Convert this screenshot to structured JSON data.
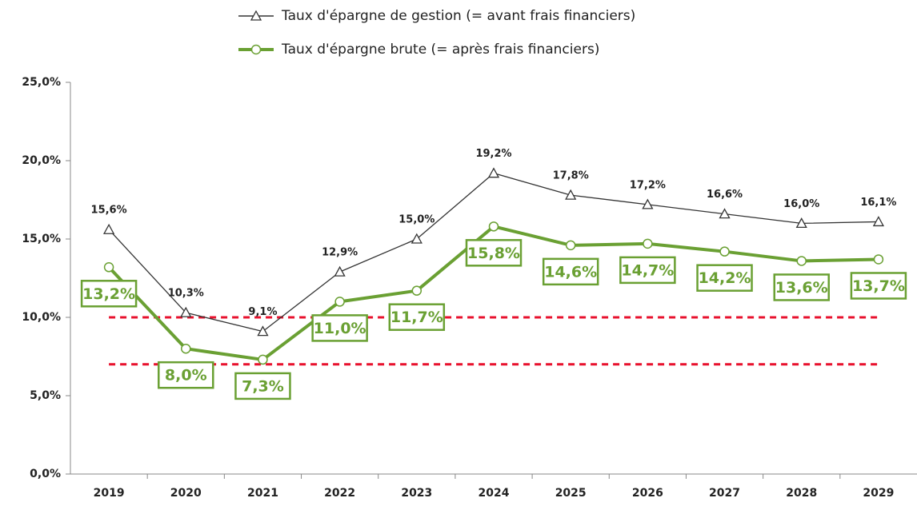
{
  "chart_data": {
    "type": "line",
    "categories": [
      "2019",
      "2020",
      "2021",
      "2022",
      "2023",
      "2024",
      "2025",
      "2026",
      "2027",
      "2028",
      "2029"
    ],
    "series": [
      {
        "name": "Taux d'épargne de gestion (= avant frais financiers)",
        "color": "#333333",
        "marker": "triangle",
        "values": [
          15.6,
          10.3,
          9.1,
          12.9,
          15.0,
          19.2,
          17.8,
          17.2,
          16.6,
          16.0,
          16.1
        ],
        "value_labels": [
          "15,6%",
          "10,3%",
          "9,1%",
          "12,9%",
          "15,0%",
          "19,2%",
          "17,8%",
          "17,2%",
          "16,6%",
          "16,0%",
          "16,1%"
        ]
      },
      {
        "name": "Taux d'épargne brute (= après frais financiers)",
        "color": "#6aa033",
        "marker": "circle",
        "values": [
          13.2,
          8.0,
          7.3,
          11.0,
          11.7,
          15.8,
          14.6,
          14.7,
          14.2,
          13.6,
          13.7
        ],
        "value_labels": [
          "13,2%",
          "8,0%",
          "7,3%",
          "11,0%",
          "11,7%",
          "15,8%",
          "14,6%",
          "14,7%",
          "14,2%",
          "13,6%",
          "13,7%"
        ]
      }
    ],
    "ylim": [
      0,
      25
    ],
    "yticks": [
      {
        "value": 0,
        "label": "0,0%"
      },
      {
        "value": 5,
        "label": "5,0%"
      },
      {
        "value": 10,
        "label": "10,0%"
      },
      {
        "value": 15,
        "label": "15,0%"
      },
      {
        "value": 20,
        "label": "20,0%"
      },
      {
        "value": 25,
        "label": "25,0%"
      }
    ],
    "reference_lines": [
      {
        "value": 10,
        "color": "#e8112d"
      },
      {
        "value": 7,
        "color": "#e8112d"
      }
    ],
    "grid": false
  }
}
